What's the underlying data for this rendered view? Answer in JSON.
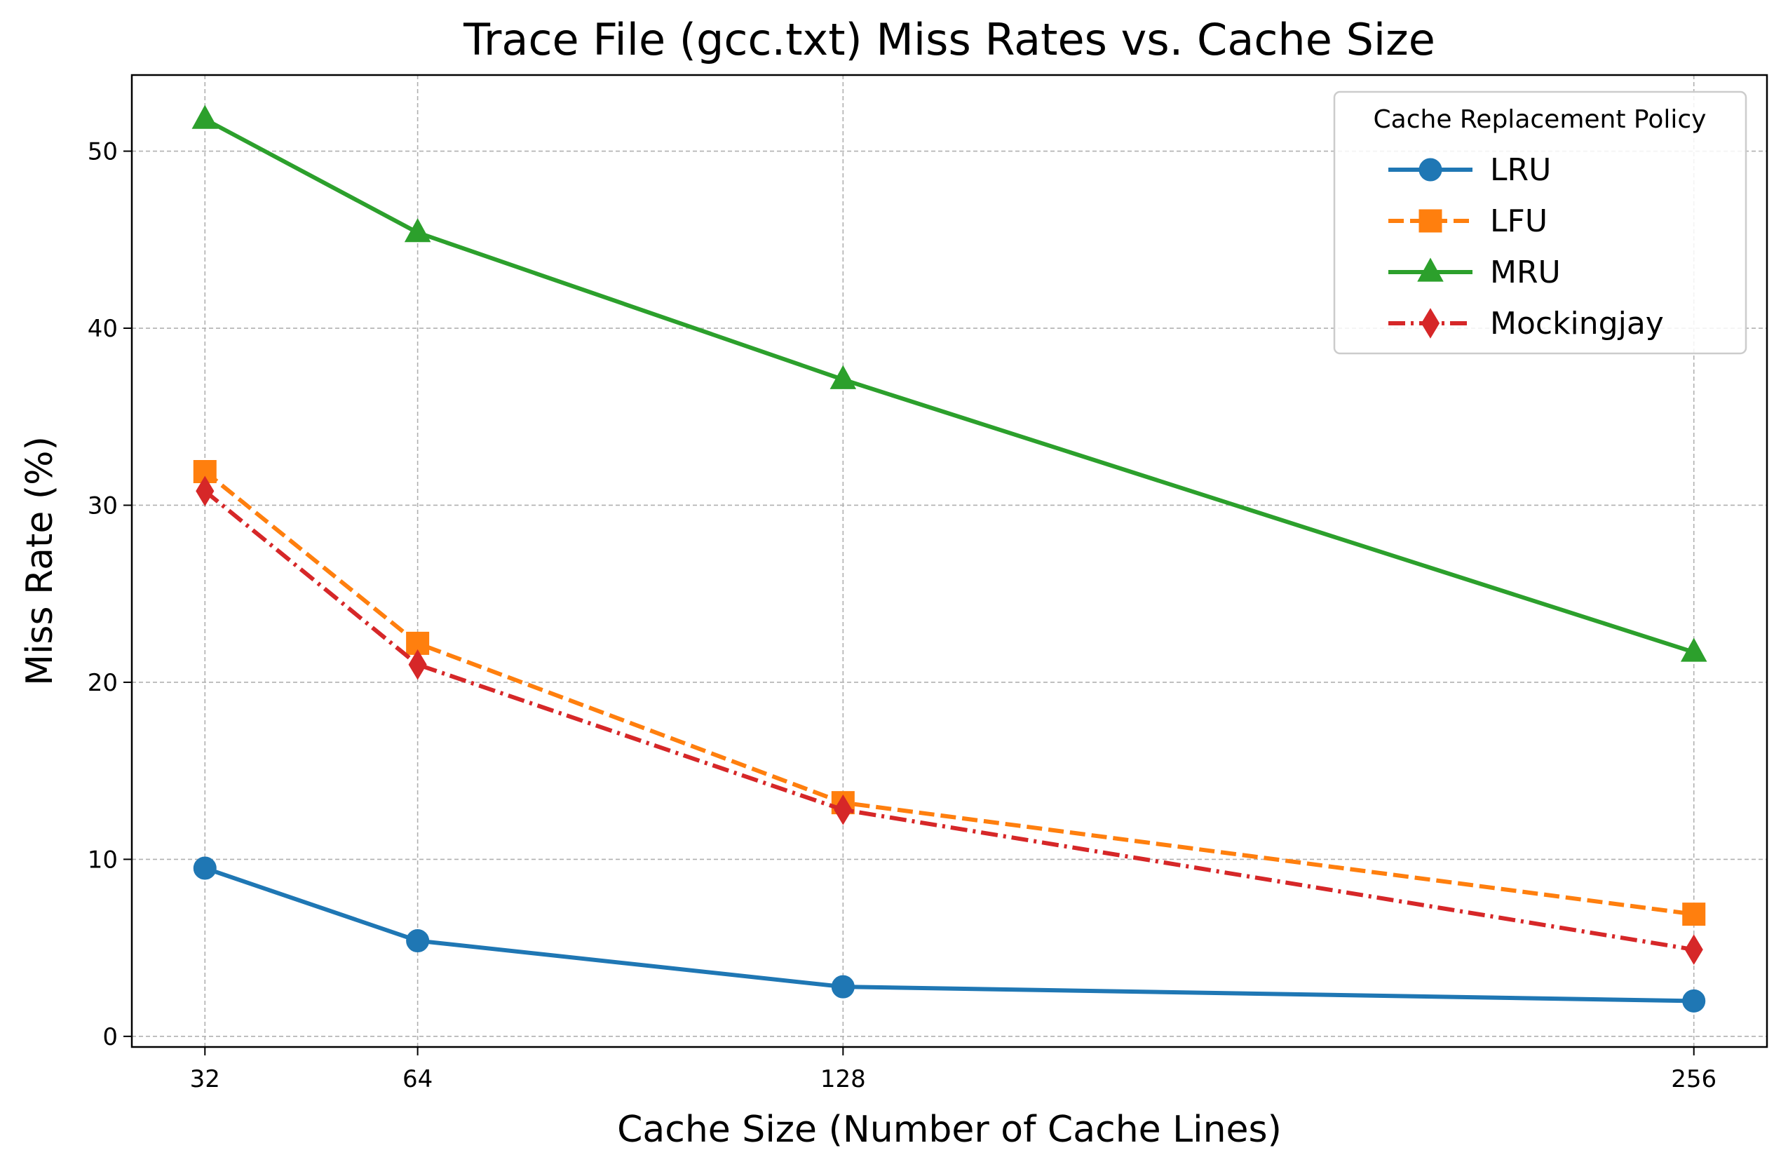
{
  "chart_data": {
    "type": "line",
    "title": "Trace File (gcc.txt) Miss Rates vs. Cache Size",
    "xlabel": "Cache Size (Number of Cache Lines)",
    "ylabel": "Miss Rate (%)",
    "x": [
      32,
      64,
      128,
      256
    ],
    "x_tick_labels": [
      "32",
      "64",
      "128",
      "256"
    ],
    "y_ticks": [
      0,
      10,
      20,
      30,
      40,
      50
    ],
    "y_tick_labels": [
      "0",
      "10",
      "20",
      "30",
      "40",
      "50"
    ],
    "xlim": [
      21,
      267
    ],
    "ylim": [
      -0.6,
      54.3
    ],
    "grid": true,
    "legend": {
      "title": "Cache Replacement Policy",
      "position": "top-right"
    },
    "series": [
      {
        "name": "LRU",
        "values": [
          9.5,
          5.4,
          2.8,
          2.0
        ],
        "color": "#1f77b4",
        "linestyle": "solid",
        "marker": "circle"
      },
      {
        "name": "LFU",
        "values": [
          31.9,
          22.2,
          13.2,
          6.9
        ],
        "color": "#ff7f0e",
        "linestyle": "dashed",
        "marker": "square"
      },
      {
        "name": "MRU",
        "values": [
          51.8,
          45.4,
          37.1,
          21.7
        ],
        "color": "#2ca02c",
        "linestyle": "solid",
        "marker": "triangle"
      },
      {
        "name": "Mockingjay",
        "values": [
          30.8,
          21.0,
          12.8,
          4.9
        ],
        "color": "#d62728",
        "linestyle": "dashdot",
        "marker": "diamond"
      }
    ]
  }
}
